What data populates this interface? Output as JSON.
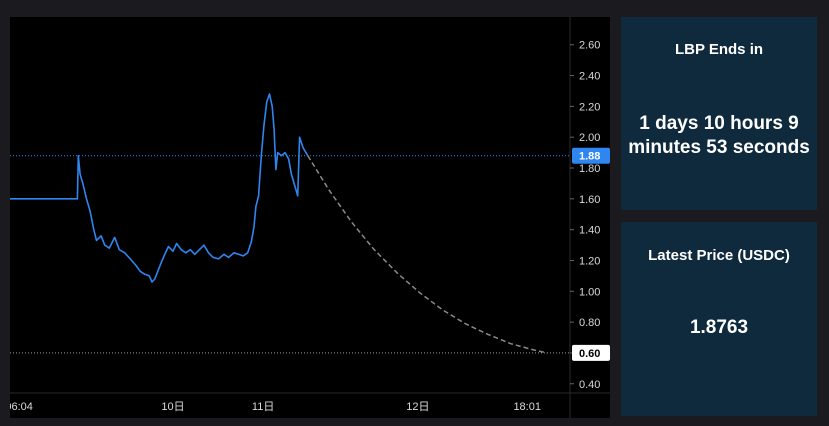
{
  "countdown": {
    "label": "LBP Ends in",
    "value": "1 days 10 hours 9 minutes 53 seconds"
  },
  "latest_price": {
    "label": "Latest Price (USDC)",
    "value": "1.8763"
  },
  "chart_data": {
    "type": "line",
    "x_unit": "hours",
    "xlim": [
      0,
      61.5
    ],
    "ylim": [
      0.34,
      2.78
    ],
    "x_tick_labels": [
      {
        "x": 1.0,
        "label": "06:04"
      },
      {
        "x": 17.9,
        "label": "10日"
      },
      {
        "x": 27.8,
        "label": "11日"
      },
      {
        "x": 44.8,
        "label": "12日"
      },
      {
        "x": 56.8,
        "label": "18:01"
      }
    ],
    "y_ticks": [
      0.4,
      0.6,
      0.8,
      1.0,
      1.2,
      1.4,
      1.6,
      1.8,
      2.0,
      2.2,
      2.4,
      2.6
    ],
    "y_tick_labels": [
      "0.40",
      "0.60",
      "0.80",
      "1.00",
      "1.20",
      "1.40",
      "1.60",
      "1.80",
      "2.00",
      "2.20",
      "2.40",
      "2.60"
    ],
    "current_price_label": "1.88",
    "current_price": 1.88,
    "floor_price_label": "0.60",
    "floor_price": 0.6,
    "grid": false,
    "colors": {
      "price_line": "#2f86f0",
      "projection_line": "#8a8a8a",
      "axis_text": "#d9d9d9",
      "current_price_badge": "#2f86f0",
      "floor_badge": "#ffffff"
    },
    "series": [
      {
        "values": [
          [
            0.0,
            1.6
          ],
          [
            7.4,
            1.6
          ],
          [
            7.5,
            1.88
          ],
          [
            7.7,
            1.76
          ],
          [
            8.0,
            1.7
          ],
          [
            8.4,
            1.6
          ],
          [
            8.8,
            1.52
          ],
          [
            9.2,
            1.4
          ],
          [
            9.5,
            1.33
          ],
          [
            10.0,
            1.36
          ],
          [
            10.4,
            1.3
          ],
          [
            10.9,
            1.28
          ],
          [
            11.5,
            1.35
          ],
          [
            12.0,
            1.27
          ],
          [
            12.6,
            1.25
          ],
          [
            13.2,
            1.21
          ],
          [
            13.8,
            1.17
          ],
          [
            14.3,
            1.13
          ],
          [
            14.8,
            1.11
          ],
          [
            15.3,
            1.1
          ],
          [
            15.6,
            1.06
          ],
          [
            15.9,
            1.08
          ],
          [
            16.3,
            1.14
          ],
          [
            16.7,
            1.2
          ],
          [
            17.0,
            1.24
          ],
          [
            17.4,
            1.29
          ],
          [
            17.9,
            1.26
          ],
          [
            18.3,
            1.31
          ],
          [
            18.8,
            1.27
          ],
          [
            19.3,
            1.25
          ],
          [
            19.8,
            1.27
          ],
          [
            20.3,
            1.24
          ],
          [
            20.8,
            1.27
          ],
          [
            21.3,
            1.3
          ],
          [
            21.8,
            1.25
          ],
          [
            22.3,
            1.22
          ],
          [
            22.9,
            1.21
          ],
          [
            23.5,
            1.24
          ],
          [
            24.0,
            1.22
          ],
          [
            24.6,
            1.25
          ],
          [
            25.1,
            1.24
          ],
          [
            25.6,
            1.23
          ],
          [
            26.1,
            1.25
          ],
          [
            26.5,
            1.32
          ],
          [
            26.8,
            1.42
          ],
          [
            27.0,
            1.55
          ],
          [
            27.3,
            1.62
          ],
          [
            27.6,
            1.88
          ],
          [
            27.9,
            2.08
          ],
          [
            28.2,
            2.23
          ],
          [
            28.5,
            2.28
          ],
          [
            28.8,
            2.2
          ],
          [
            29.0,
            2.05
          ],
          [
            29.2,
            1.79
          ],
          [
            29.4,
            1.9
          ],
          [
            29.8,
            1.88
          ],
          [
            30.2,
            1.9
          ],
          [
            30.6,
            1.86
          ],
          [
            30.9,
            1.76
          ],
          [
            31.3,
            1.68
          ],
          [
            31.6,
            1.62
          ],
          [
            31.8,
            2.0
          ],
          [
            32.2,
            1.93
          ],
          [
            32.7,
            1.88
          ]
        ]
      },
      {
        "name": "projection",
        "style": "dashed",
        "values": [
          [
            32.7,
            1.88
          ],
          [
            35.0,
            1.66
          ],
          [
            37.5,
            1.45
          ],
          [
            40.0,
            1.27
          ],
          [
            42.5,
            1.12
          ],
          [
            45.0,
            0.99
          ],
          [
            47.5,
            0.88
          ],
          [
            50.0,
            0.79
          ],
          [
            52.5,
            0.72
          ],
          [
            55.0,
            0.66
          ],
          [
            57.5,
            0.62
          ],
          [
            59.0,
            0.6
          ]
        ]
      }
    ]
  }
}
